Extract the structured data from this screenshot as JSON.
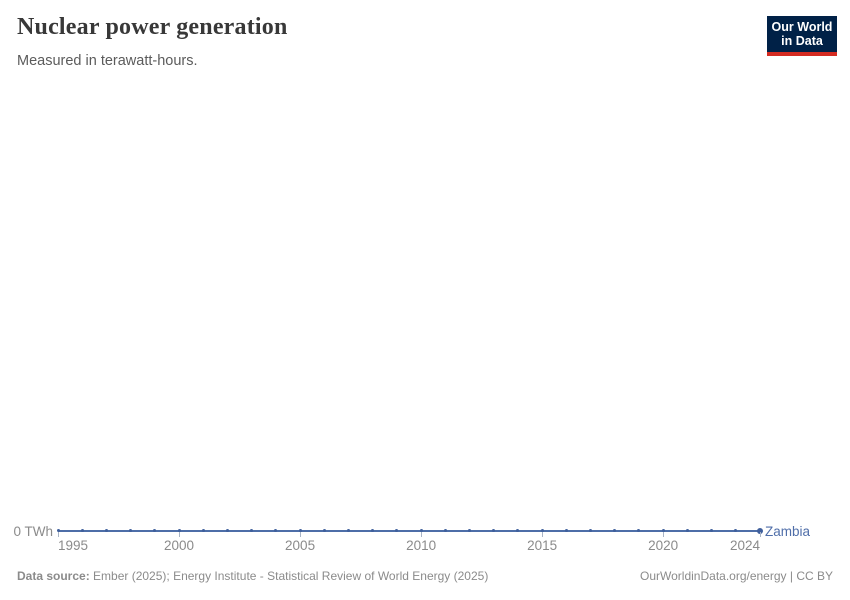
{
  "header": {
    "title": "Nuclear power generation",
    "subtitle": "Measured in terawatt-hours."
  },
  "logo": {
    "line1": "Our World",
    "line2": "in Data",
    "bg": "#002147",
    "accent": "#d42b21",
    "text_color": "#ffffff"
  },
  "chart_data": {
    "type": "line",
    "title": "Nuclear power generation",
    "subtitle": "Measured in terawatt-hours.",
    "unit": "TWh",
    "x": [
      1995,
      1996,
      1997,
      1998,
      1999,
      2000,
      2001,
      2002,
      2003,
      2004,
      2005,
      2006,
      2007,
      2008,
      2009,
      2010,
      2011,
      2012,
      2013,
      2014,
      2015,
      2016,
      2017,
      2018,
      2019,
      2020,
      2021,
      2022,
      2023,
      2024
    ],
    "series": [
      {
        "name": "Zambia",
        "values": [
          0,
          0,
          0,
          0,
          0,
          0,
          0,
          0,
          0,
          0,
          0,
          0,
          0,
          0,
          0,
          0,
          0,
          0,
          0,
          0,
          0,
          0,
          0,
          0,
          0,
          0,
          0,
          0,
          0,
          0
        ],
        "color": "#4d6ea8"
      }
    ],
    "xlim": [
      1995,
      2024
    ],
    "x_ticks": [
      1995,
      2000,
      2005,
      2010,
      2015,
      2020,
      2024
    ],
    "ylim": [
      0,
      0
    ],
    "y_tick_label": "0 TWh",
    "grid": false,
    "legend_position": "line-end-label"
  },
  "axes": {
    "y_zero_label": "0 TWh",
    "entity_label": "Zambia"
  },
  "footer": {
    "source_label": "Data source:",
    "source_text": " Ember (2025); Energy Institute - Statistical Review of World Energy (2025)",
    "right_text": "OurWorldinData.org/energy | CC BY"
  },
  "colors": {
    "line": "#4d6ea8",
    "marker": "#3f5f9c",
    "axis_text": "#8b8b8b",
    "tick": "#a8b4c6",
    "title": "#383838",
    "subtitle": "#5b5b5b",
    "entity": "#4f6ea9"
  }
}
